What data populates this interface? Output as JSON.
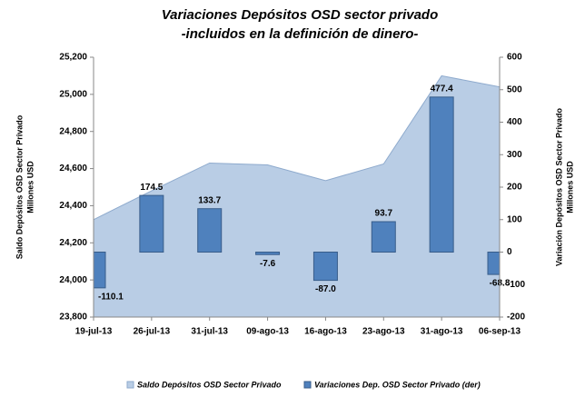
{
  "chart_data": {
    "type": "bar-area",
    "title": [
      "Variaciones Depósitos OSD sector privado",
      "-incluidos en la definición de dinero-"
    ],
    "y_label": [
      "Saldo Depósitos OSD Sector Privado",
      "Millones USD"
    ],
    "y2_label": [
      "Variación  Depósitos OSD  Sector Privado",
      "Millones USD"
    ],
    "categories": [
      "19-jul-13",
      "26-jul-13",
      "31-jul-13",
      "09-ago-13",
      "16-ago-13",
      "23-ago-13",
      "31-ago-13",
      "06-sep-13"
    ],
    "series": [
      {
        "name": "Saldo Depósitos OSD Sector Privado",
        "type": "area",
        "color": "#b9cde5",
        "line_color": "#8eaacd",
        "values": [
          24325,
          24480,
          24630,
          24620,
          24535,
          24625,
          25100,
          25040
        ]
      },
      {
        "name": "Variaciones Dep. OSD Sector Privado (der)",
        "type": "bar",
        "axis": "y2",
        "color": "#4f81bd",
        "values": [
          -110.1,
          174.5,
          133.7,
          -7.6,
          -87.0,
          93.7,
          477.4,
          -68.8
        ],
        "value_labels": [
          "-110.1",
          "174.5",
          "133.7",
          "-7.6",
          "-87.0",
          "93.7",
          "477.4",
          "-68.8"
        ]
      }
    ],
    "ylim": [
      23800,
      25200
    ],
    "yticks": [
      {
        "value": 23800,
        "label": "23,800"
      },
      {
        "value": 24000,
        "label": "24,000"
      },
      {
        "value": 24200,
        "label": "24,200"
      },
      {
        "value": 24400,
        "label": "24,400"
      },
      {
        "value": 24600,
        "label": "24,600"
      },
      {
        "value": 24800,
        "label": "24,800"
      },
      {
        "value": 25000,
        "label": "25,000"
      },
      {
        "value": 25200,
        "label": "25,200"
      }
    ],
    "y2lim": [
      -200,
      600
    ],
    "y2ticks": [
      -200,
      -100,
      0,
      100,
      200,
      300,
      400,
      500,
      600
    ],
    "legend": "bottom"
  }
}
